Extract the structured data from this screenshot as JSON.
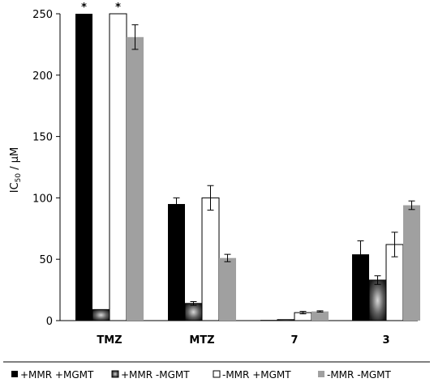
{
  "chart_data": {
    "type": "bar",
    "ylabel_main": "IC",
    "ylabel_sub": "50",
    "ylabel_rest": " / µM",
    "ylim": [
      0,
      250
    ],
    "yticks": [
      0,
      50,
      100,
      150,
      200,
      250
    ],
    "categories": [
      "TMZ",
      "MTZ",
      "7",
      "3"
    ],
    "series": [
      {
        "name": "+MMR +MGMT",
        "color": "#000000",
        "style": "solid",
        "values": [
          250,
          95,
          0.5,
          54
        ],
        "errors": [
          0,
          5,
          0,
          11
        ]
      },
      {
        "name": "+MMR -MGMT",
        "color": "#3a3a3a",
        "style": "gradient",
        "values": [
          9,
          14,
          0.8,
          33
        ],
        "errors": [
          0,
          1.5,
          0,
          3.5
        ]
      },
      {
        "name": "-MMR +MGMT",
        "color": "#ffffff",
        "style": "outline",
        "values": [
          250,
          100,
          6.5,
          62
        ],
        "errors": [
          0,
          10,
          1,
          10
        ]
      },
      {
        "name": "-MMR -MGMT",
        "color": "#a0a0a0",
        "style": "solid",
        "values": [
          231,
          51,
          7.5,
          94
        ],
        "errors": [
          10,
          3,
          0.5,
          3.5
        ]
      }
    ],
    "annotations": [
      {
        "symbol": "*",
        "category": "TMZ",
        "series": 0
      },
      {
        "symbol": "*",
        "category": "TMZ",
        "series": 2
      }
    ],
    "legend_position": "bottom",
    "grid": false
  }
}
